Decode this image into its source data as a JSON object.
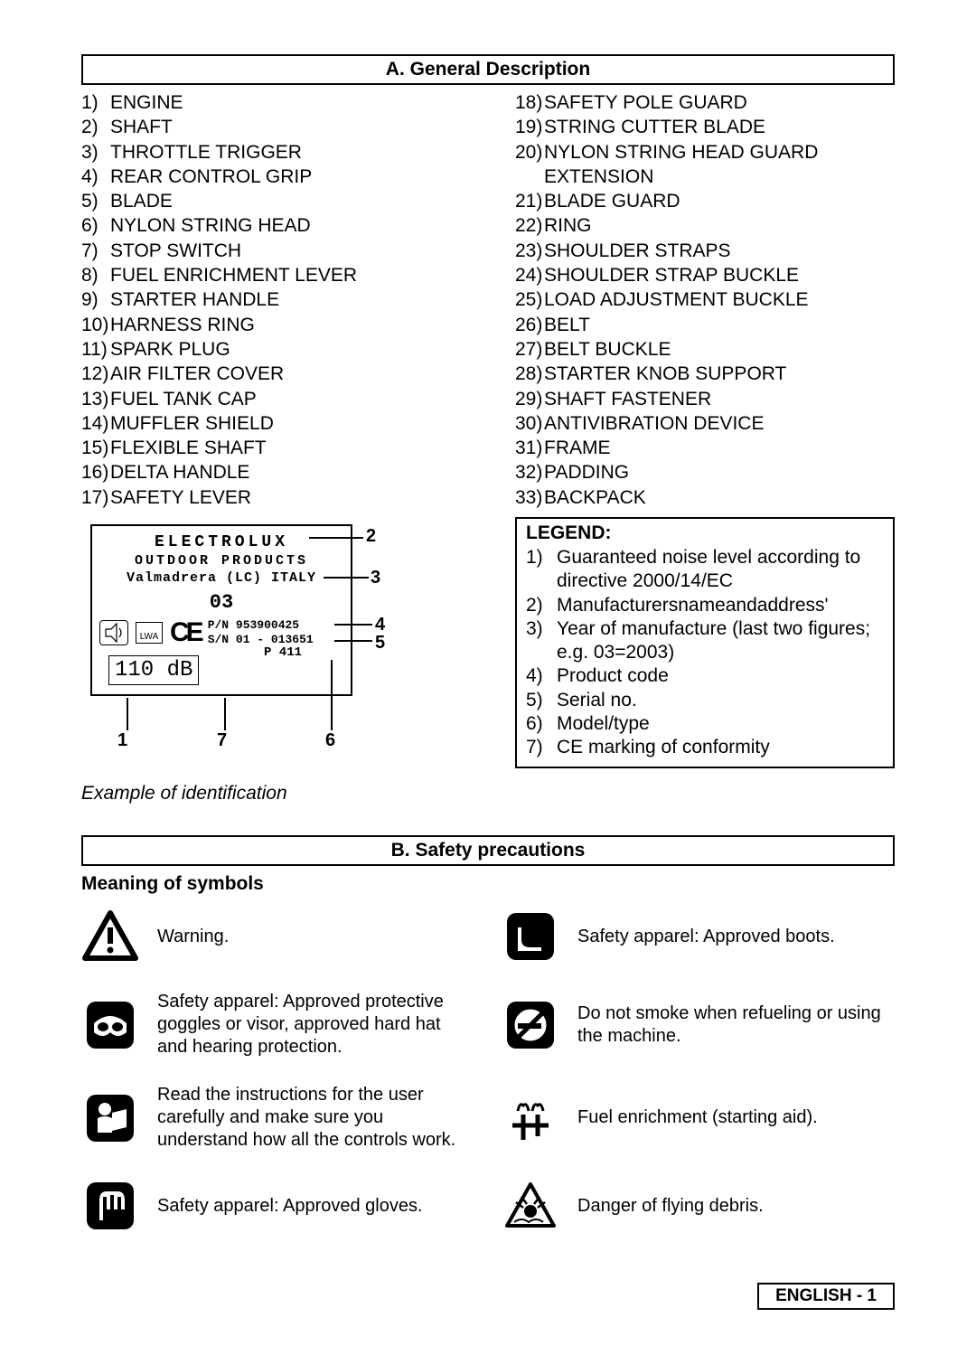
{
  "sectionA": {
    "title": "A. General Description",
    "parts": [
      {
        "n": "1)",
        "t": "ENGINE"
      },
      {
        "n": "2)",
        "t": "SHAFT"
      },
      {
        "n": "3)",
        "t": "THROTTLE TRIGGER"
      },
      {
        "n": "4)",
        "t": "REAR CONTROL GRIP"
      },
      {
        "n": "5)",
        "t": "BLADE"
      },
      {
        "n": "6)",
        "t": "NYLON STRING HEAD"
      },
      {
        "n": "7)",
        "t": "STOP SWITCH"
      },
      {
        "n": "8)",
        "t": "FUEL ENRICHMENT LEVER"
      },
      {
        "n": "9)",
        "t": "STARTER HANDLE"
      },
      {
        "n": "10)",
        "t": "HARNESS RING"
      },
      {
        "n": "11)",
        "t": "SPARK PLUG"
      },
      {
        "n": "12)",
        "t": "AIR FILTER COVER"
      },
      {
        "n": "13)",
        "t": "FUEL TANK CAP"
      },
      {
        "n": "14)",
        "t": "MUFFLER SHIELD"
      },
      {
        "n": "15)",
        "t": "FLEXIBLE SHAFT"
      },
      {
        "n": "16)",
        "t": "DELTA HANDLE"
      },
      {
        "n": "17)",
        "t": "SAFETY LEVER"
      },
      {
        "n": "18)",
        "t": "SAFETY POLE GUARD"
      },
      {
        "n": "19)",
        "t": "STRING CUTTER BLADE"
      },
      {
        "n": "20)",
        "t": "NYLON STRING HEAD GUARD EXTENSION"
      },
      {
        "n": "21)",
        "t": "BLADE GUARD"
      },
      {
        "n": "22)",
        "t": "RING"
      },
      {
        "n": "23)",
        "t": "SHOULDER STRAPS"
      },
      {
        "n": "24)",
        "t": "SHOULDER STRAP BUCKLE"
      },
      {
        "n": "25)",
        "t": "LOAD ADJUSTMENT BUCKLE"
      },
      {
        "n": "26)",
        "t": "BELT"
      },
      {
        "n": "27)",
        "t": "BELT BUCKLE"
      },
      {
        "n": "28)",
        "t": "STARTER KNOB SUPPORT"
      },
      {
        "n": "29)",
        "t": "SHAFT FASTENER"
      },
      {
        "n": "30)",
        "t": "ANTIVIBRATION DEVICE"
      },
      {
        "n": "31)",
        "t": "FRAME"
      },
      {
        "n": "32)",
        "t": "PADDING"
      },
      {
        "n": "33)",
        "t": "BACKPACK"
      }
    ]
  },
  "legend": {
    "title": "LEGEND:",
    "items": [
      {
        "n": "1)",
        "t": "Guaranteed noise level according to directive 2000/14/EC"
      },
      {
        "n": "2)",
        "t": "Manufacturersnameandaddress'"
      },
      {
        "n": "3)",
        "t": "Year of manufacture (last two figures; e.g. 03=2003)"
      },
      {
        "n": "4)",
        "t": "Product code"
      },
      {
        "n": "5)",
        "t": "Serial no."
      },
      {
        "n": "6)",
        "t": "Model/type"
      },
      {
        "n": "7)",
        "t": "CE marking of conformity"
      }
    ]
  },
  "label": {
    "brand": "ELECTROLUX",
    "brand2": "OUTDOOR PRODUCTS",
    "brand3": "Valmadrera (LC) ITALY",
    "year": "03",
    "lwa": "LWA",
    "ce": "CE",
    "pn": "P/N   953900425",
    "sn": "S/N 01 - 013651",
    "model": "P 411",
    "db": "110 dB",
    "callouts": {
      "c1": "1",
      "c2": "2",
      "c3": "3",
      "c4": "4",
      "c5": "5",
      "c6": "6",
      "c7": "7"
    },
    "example": "Example of identification"
  },
  "sectionB": {
    "title": "B. Safety precautions",
    "symbolsTitle": "Meaning of symbols",
    "symbols": [
      {
        "t": "Warning."
      },
      {
        "t": "Safety apparel: Approved boots."
      },
      {
        "t": "Safety apparel: Approved protective goggles or visor, approved hard hat and hearing protection."
      },
      {
        "t": "Do not smoke when refueling or using the machine."
      },
      {
        "t": "Read the instructions for the user carefully and make sure you understand how all the controls work."
      },
      {
        "t": "Fuel enrichment (starting aid)."
      },
      {
        "t": "Safety apparel: Approved gloves."
      },
      {
        "t": "Danger of flying debris."
      }
    ]
  },
  "footer": "ENGLISH   -   1"
}
